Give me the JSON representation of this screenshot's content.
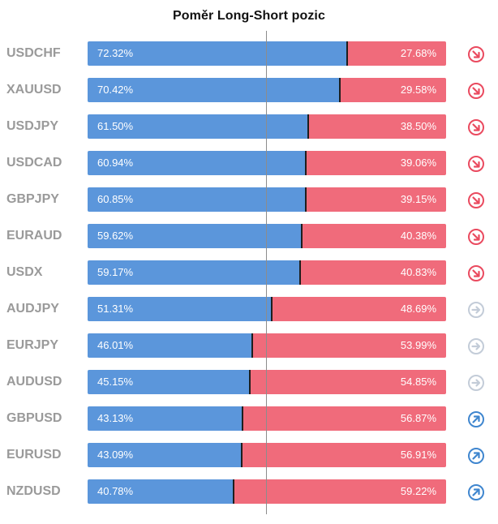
{
  "chart_data": {
    "type": "bar",
    "title": "Poměr Long-Short pozic",
    "categories": [
      "USDCHF",
      "XAUUSD",
      "USDJPY",
      "USDCAD",
      "GBPJPY",
      "EURAUD",
      "USDX",
      "AUDJPY",
      "EURJPY",
      "AUDUSD",
      "GBPUSD",
      "EURUSD",
      "NZDUSD"
    ],
    "series": [
      {
        "values": [
          72.32,
          70.42,
          61.5,
          60.94,
          60.85,
          59.62,
          59.17,
          51.31,
          46.01,
          45.15,
          43.13,
          43.09,
          40.78
        ]
      },
      {
        "values": [
          27.68,
          29.58,
          38.5,
          39.06,
          39.15,
          40.38,
          40.83,
          48.69,
          53.99,
          54.85,
          56.87,
          56.91,
          59.22
        ]
      }
    ],
    "value_labels_long": [
      "72.32%",
      "70.42%",
      "61.50%",
      "60.94%",
      "60.85%",
      "59.62%",
      "59.17%",
      "51.31%",
      "46.01%",
      "45.15%",
      "43.13%",
      "43.09%",
      "40.78%"
    ],
    "value_labels_short": [
      "27.68%",
      "29.58%",
      "38.50%",
      "39.06%",
      "39.15%",
      "40.38%",
      "40.83%",
      "48.69%",
      "53.99%",
      "54.85%",
      "56.87%",
      "56.91%",
      "59.22%"
    ],
    "trend_icons": [
      "arrow-down-right-icon",
      "arrow-down-right-icon",
      "arrow-down-right-icon",
      "arrow-down-right-icon",
      "arrow-down-right-icon",
      "arrow-down-right-icon",
      "arrow-down-right-icon",
      "arrow-right-icon",
      "arrow-right-icon",
      "arrow-right-icon",
      "arrow-up-right-icon",
      "arrow-up-right-icon",
      "arrow-up-right-icon"
    ],
    "xlim": [
      0,
      100
    ],
    "stacked": true,
    "reference_line": 50,
    "grid": false,
    "legend": "none"
  },
  "colors": {
    "long": "#5b96db",
    "short": "#f06b7b",
    "down": "#ea4a5f",
    "neutral": "#c3ccd8",
    "up": "#3f86cf"
  }
}
